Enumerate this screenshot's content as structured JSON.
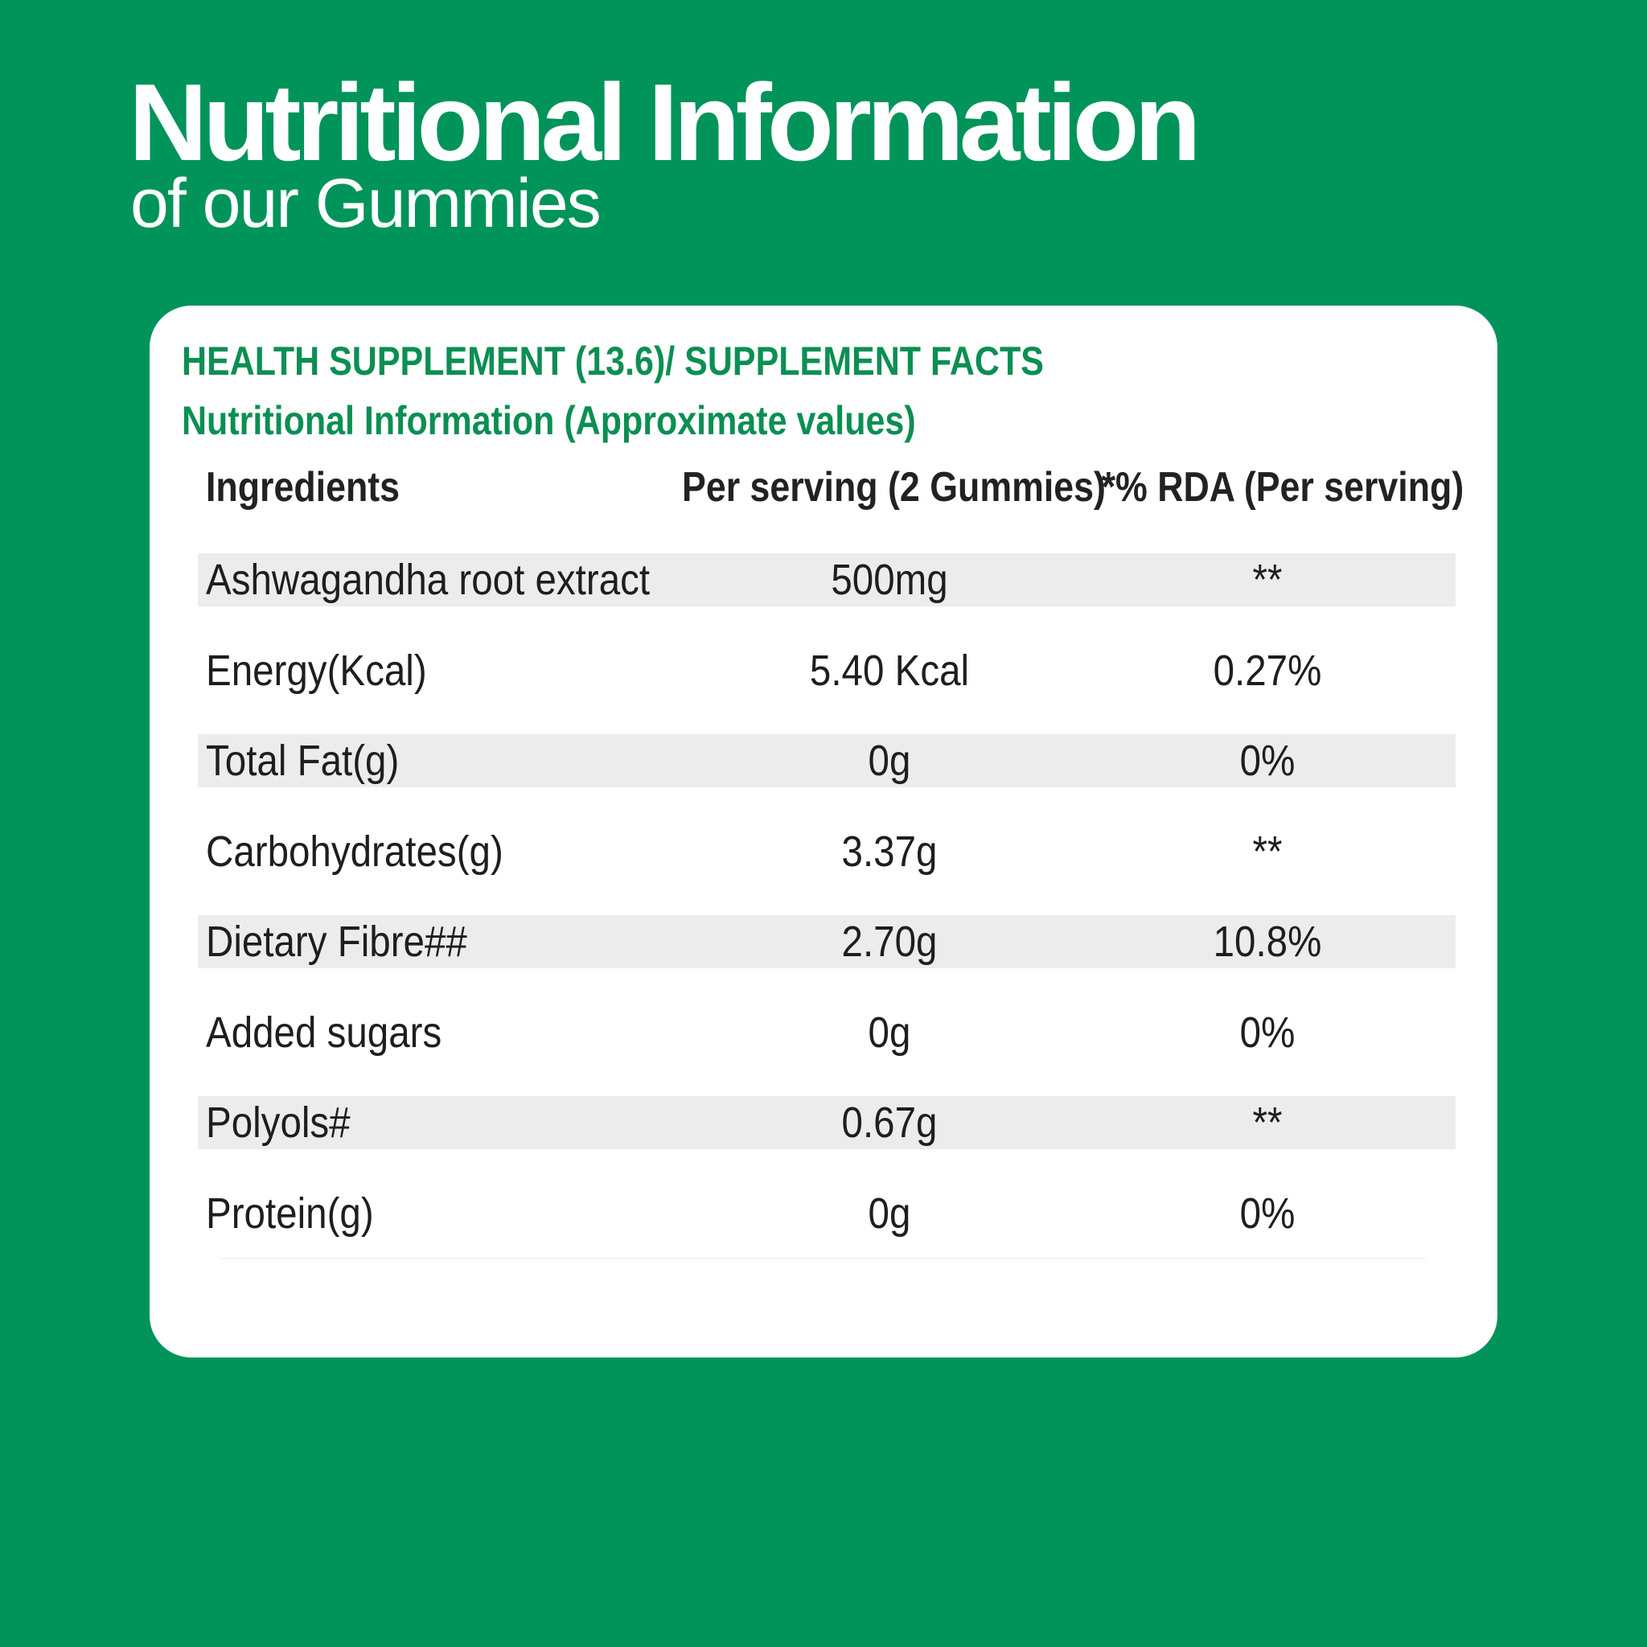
{
  "page": {
    "title": "Nutritional Information",
    "subtitle": "of our Gummies"
  },
  "card": {
    "title": "HEALTH SUPPLEMENT (13.6)/ SUPPLEMENT FACTS",
    "subtitle": "Nutritional Information (Approximate values)"
  },
  "table": {
    "headers": {
      "ingredient": "Ingredients",
      "serving": "Per serving (2 Gummies)",
      "rda": "*% RDA (Per serving)"
    },
    "rows": [
      {
        "name": "Ashwagandha root extract",
        "serving": "500mg",
        "rda": "**"
      },
      {
        "name": "Energy(Kcal)",
        "serving": "5.40 Kcal",
        "rda": "0.27%"
      },
      {
        "name": "Total Fat(g)",
        "serving": "0g",
        "rda": "0%"
      },
      {
        "name": "Carbohydrates(g)",
        "serving": "3.37g",
        "rda": "**"
      },
      {
        "name": "Dietary Fibre##",
        "serving": "2.70g",
        "rda": "10.8%"
      },
      {
        "name": "Added sugars",
        "serving": "0g",
        "rda": "0%"
      },
      {
        "name": "Polyols#",
        "serving": "0.67g",
        "rda": "**"
      },
      {
        "name": "Protein(g)",
        "serving": "0g",
        "rda": "0%"
      }
    ]
  },
  "colors": {
    "background": "#00945a",
    "accent": "#0b8f52",
    "row_shade": "#ececec"
  }
}
